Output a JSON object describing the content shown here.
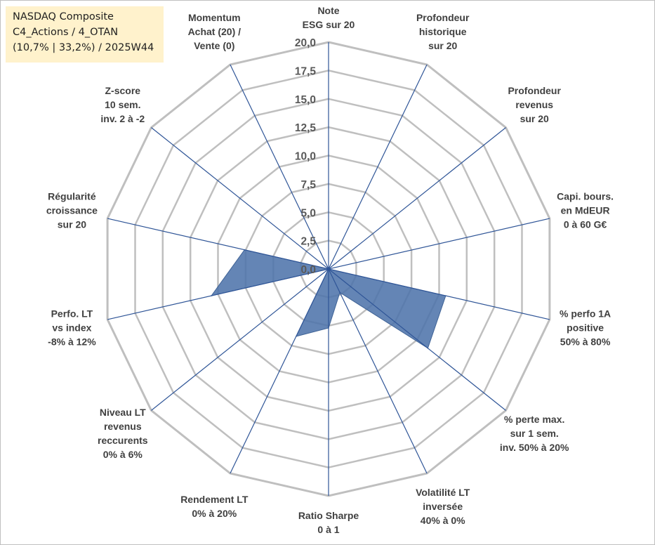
{
  "title_box": {
    "line1": "NASDAQ Composite",
    "line2": "C4_Actions / 4_OTAN",
    "line3": "(10,7% | 33,2%) / 2025W44"
  },
  "chart_data": {
    "type": "radar",
    "r_range": [
      0,
      20
    ],
    "r_ticks": [
      "0,0",
      "2,5",
      "5,0",
      "7,5",
      "10,0",
      "12,5",
      "15,0",
      "17,5",
      "20,0"
    ],
    "axes": [
      [
        "Note",
        "ESG sur 20"
      ],
      [
        "Profondeur",
        "historique",
        "sur 20"
      ],
      [
        "Profondeur",
        "revenus",
        "sur 20"
      ],
      [
        "Capi. bours.",
        "en MdEUR",
        "0 à 60 G€"
      ],
      [
        "% perfo 1A",
        "positive",
        "50% à 80%"
      ],
      [
        "% perte max.",
        "sur 1 sem.",
        "inv. 50% à 20%"
      ],
      [
        "Volatilité LT",
        "inversée",
        "40% à 0%"
      ],
      [
        "Ratio Sharpe",
        "0 à 1"
      ],
      [
        "Rendement LT",
        "0% à 20%"
      ],
      [
        "Niveau LT",
        "revenus",
        "reccurents",
        "0% à 6%"
      ],
      [
        "Perfo. LT",
        "vs index",
        "-8% à 12%"
      ],
      [
        "Régularité",
        "croissance",
        "sur 20"
      ],
      [
        "Z-score",
        "10 sem.",
        "inv. 2 à -2"
      ],
      [
        "Momentum",
        "Achat (20) /",
        "Vente (0)"
      ]
    ],
    "series": [
      {
        "name": "NASDAQ Composite",
        "color": "#4f74ab",
        "values": [
          0,
          0,
          0,
          0,
          10.6,
          11.2,
          2.3,
          5.2,
          6.6,
          0,
          10.6,
          7.6,
          0,
          0
        ]
      }
    ],
    "grid_color": "#bfbfbf",
    "spoke_color": "#2f5597"
  }
}
